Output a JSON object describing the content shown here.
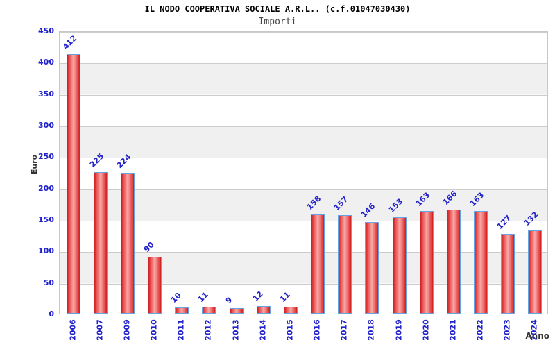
{
  "chart_data": {
    "type": "bar",
    "title": "IL NODO COOPERATIVA SOCIALE A.R.L.. (c.f.01047030430)",
    "subtitle": "Importi",
    "xlabel": "Anno",
    "ylabel": "Euro",
    "categories": [
      "2006",
      "2007",
      "2009",
      "2010",
      "2011",
      "2012",
      "2013",
      "2014",
      "2015",
      "2016",
      "2017",
      "2018",
      "2019",
      "2020",
      "2021",
      "2022",
      "2023",
      "2024"
    ],
    "values": [
      412,
      225,
      224,
      90,
      10,
      11,
      9,
      12,
      11,
      158,
      157,
      146,
      153,
      163,
      166,
      163,
      127,
      132
    ],
    "ylim": [
      0,
      450
    ],
    "ytick_step": 50,
    "grid": true,
    "legend": "none",
    "colors": {
      "bar_edge": "#cf1d1d",
      "bar_center": "#f9aaaa",
      "bar_border": "#66a3e0",
      "tick_text": "#2222cc",
      "grid_line": "#cccccc",
      "band_gray": "#f0f0f0",
      "band_white": "#ffffff",
      "axis_title_text": "#333333",
      "title_text": "#000000",
      "subtitle_text": "#444444"
    }
  }
}
